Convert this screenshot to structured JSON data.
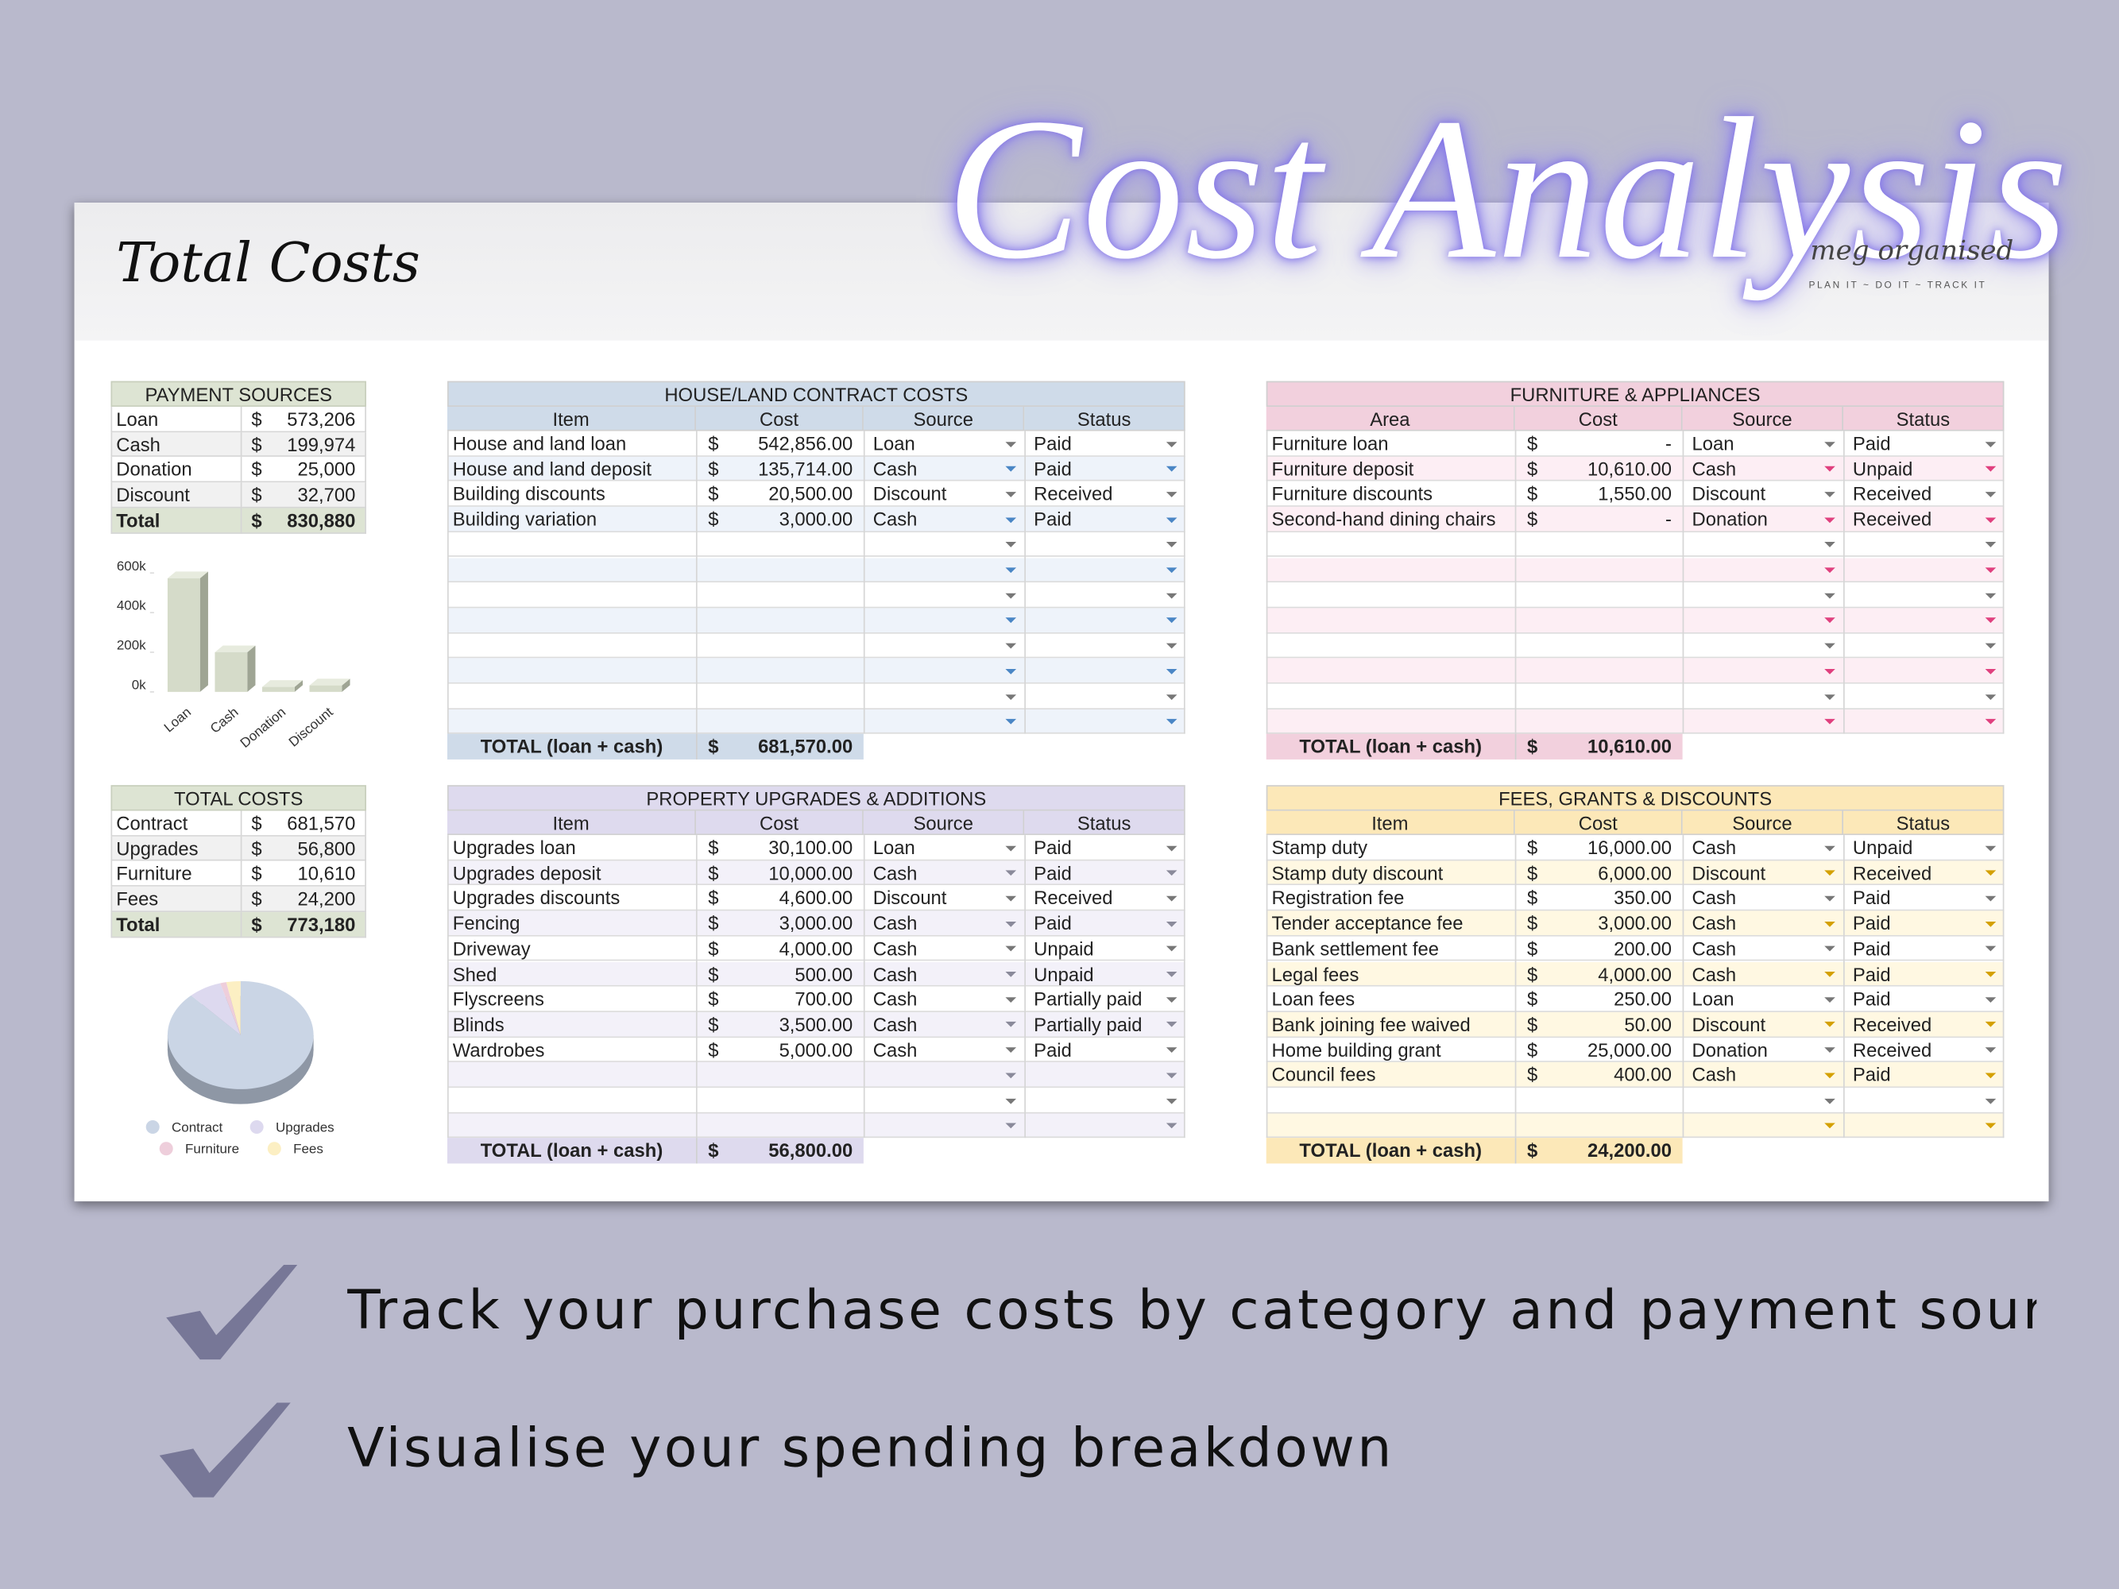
{
  "header": {
    "title": "Cost Analysis",
    "brand": "meg organised",
    "tagline": "PLAN IT ~ DO IT ~ TRACK IT"
  },
  "sheet": {
    "title": "Total Costs"
  },
  "payment_sources": {
    "title": "PAYMENT SOURCES",
    "currency": "$",
    "rows": [
      [
        "Loan",
        "573,206"
      ],
      [
        "Cash",
        "199,974"
      ],
      [
        "Donation",
        "25,000"
      ],
      [
        "Discount",
        "32,700"
      ]
    ],
    "total": [
      "Total",
      "830,880"
    ]
  },
  "total_costs": {
    "title": "TOTAL COSTS",
    "currency": "$",
    "rows": [
      [
        "Contract",
        "681,570"
      ],
      [
        "Upgrades",
        "56,800"
      ],
      [
        "Furniture",
        "10,610"
      ],
      [
        "Fees",
        "24,200"
      ]
    ],
    "total": [
      "Total",
      "773,180"
    ]
  },
  "chart_data": [
    {
      "type": "bar",
      "categories": [
        "Loan",
        "Cash",
        "Donation",
        "Discount"
      ],
      "values": [
        573206,
        199974,
        25000,
        32700
      ],
      "color": "#d5dbc9",
      "ylim": [
        0,
        600000
      ],
      "yticks": [
        {
          "value": 0,
          "label": "0k"
        },
        {
          "value": 200000,
          "label": "200k"
        },
        {
          "value": 400000,
          "label": "400k"
        },
        {
          "value": 600000,
          "label": "600k"
        }
      ]
    },
    {
      "type": "pie",
      "categories": [
        "Contract",
        "Upgrades",
        "Furniture",
        "Fees"
      ],
      "values": [
        681570,
        56800,
        10610,
        24200
      ],
      "colors": [
        "#cad5e5",
        "#ddd9ef",
        "#eecedb",
        "#fcefc3"
      ]
    }
  ],
  "tables": [
    {
      "title": "HOUSE/LAND CONTRACT COSTS",
      "columns": [
        "Item",
        "Cost",
        "Source",
        "Status"
      ],
      "currency": "$",
      "rows": [
        [
          "House and land loan",
          "542,856.00",
          "Loan",
          "Paid"
        ],
        [
          "House and land deposit",
          "135,714.00",
          "Cash",
          "Paid"
        ],
        [
          "Building discounts",
          "20,500.00",
          "Discount",
          "Received"
        ],
        [
          "Building variation",
          "3,000.00",
          "Cash",
          "Paid"
        ]
      ],
      "total_label": "TOTAL (loan + cash)",
      "total": "681,570.00"
    },
    {
      "title": "FURNITURE & APPLIANCES",
      "columns": [
        "Area",
        "Cost",
        "Source",
        "Status"
      ],
      "currency": "$",
      "rows": [
        [
          "Furniture loan",
          "-",
          "Loan",
          "Paid"
        ],
        [
          "Furniture deposit",
          "10,610.00",
          "Cash",
          "Unpaid"
        ],
        [
          "Furniture discounts",
          "1,550.00",
          "Discount",
          "Received"
        ],
        [
          "Second-hand dining chairs",
          "-",
          "Donation",
          "Received"
        ]
      ],
      "total_label": "TOTAL (loan + cash)",
      "total": "10,610.00"
    },
    {
      "title": "PROPERTY UPGRADES & ADDITIONS",
      "columns": [
        "Item",
        "Cost",
        "Source",
        "Status"
      ],
      "currency": "$",
      "rows": [
        [
          "Upgrades loan",
          "30,100.00",
          "Loan",
          "Paid"
        ],
        [
          "Upgrades deposit",
          "10,000.00",
          "Cash",
          "Paid"
        ],
        [
          "Upgrades discounts",
          "4,600.00",
          "Discount",
          "Received"
        ],
        [
          "Fencing",
          "3,000.00",
          "Cash",
          "Paid"
        ],
        [
          "Driveway",
          "4,000.00",
          "Cash",
          "Unpaid"
        ],
        [
          "Shed",
          "500.00",
          "Cash",
          "Unpaid"
        ],
        [
          "Flyscreens",
          "700.00",
          "Cash",
          "Partially paid"
        ],
        [
          "Blinds",
          "3,500.00",
          "Cash",
          "Partially paid"
        ],
        [
          "Wardrobes",
          "5,000.00",
          "Cash",
          "Paid"
        ]
      ],
      "total_label": "TOTAL (loan + cash)",
      "total": "56,800.00"
    },
    {
      "title": "FEES, GRANTS & DISCOUNTS",
      "columns": [
        "Item",
        "Cost",
        "Source",
        "Status"
      ],
      "currency": "$",
      "rows": [
        [
          "Stamp duty",
          "16,000.00",
          "Cash",
          "Unpaid"
        ],
        [
          "Stamp duty discount",
          "6,000.00",
          "Discount",
          "Received"
        ],
        [
          "Registration fee",
          "350.00",
          "Cash",
          "Paid"
        ],
        [
          "Tender acceptance fee",
          "3,000.00",
          "Cash",
          "Paid"
        ],
        [
          "Bank settlement fee",
          "200.00",
          "Cash",
          "Paid"
        ],
        [
          "Legal fees",
          "4,000.00",
          "Cash",
          "Paid"
        ],
        [
          "Loan fees",
          "250.00",
          "Loan",
          "Paid"
        ],
        [
          "Bank joining fee waived",
          "50.00",
          "Discount",
          "Received"
        ],
        [
          "Home building grant",
          "25,000.00",
          "Donation",
          "Received"
        ],
        [
          "Council fees",
          "400.00",
          "Cash",
          "Paid"
        ]
      ],
      "total_label": "TOTAL (loan + cash)",
      "total": "24,200.00"
    }
  ],
  "bullets": [
    "Track your purchase costs by category and payment source",
    "Visualise your spending breakdown"
  ]
}
